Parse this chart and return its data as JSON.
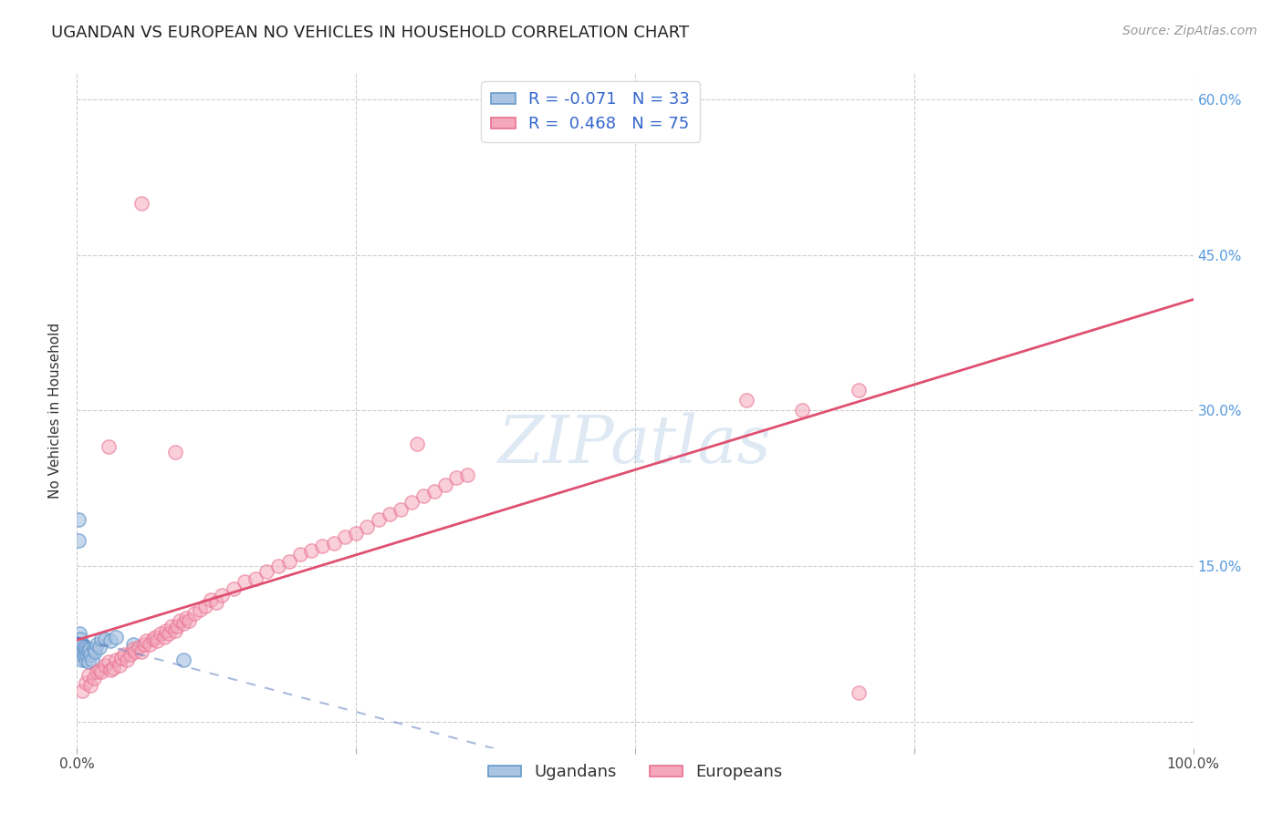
{
  "title": "UGANDAN VS EUROPEAN NO VEHICLES IN HOUSEHOLD CORRELATION CHART",
  "source": "Source: ZipAtlas.com",
  "ylabel": "No Vehicles in Household",
  "xlim": [
    0,
    1.0
  ],
  "ylim": [
    -0.025,
    0.625
  ],
  "ugandan_R": -0.071,
  "ugandan_N": 33,
  "european_R": 0.468,
  "european_N": 75,
  "ugandan_color": "#aac4e2",
  "european_color": "#f5a8bc",
  "ugandan_edge_color": "#6699cc",
  "european_edge_color": "#e87090",
  "ugandan_line_color": "#5577bb",
  "european_line_color": "#e05070",
  "background_color": "#ffffff",
  "grid_color": "#c8c8c8",
  "title_fontsize": 13,
  "axis_label_fontsize": 11,
  "tick_fontsize": 11,
  "legend_fontsize": 13,
  "source_fontsize": 10,
  "ugandan_x": [
    0.001,
    0.001,
    0.002,
    0.002,
    0.002,
    0.003,
    0.003,
    0.004,
    0.004,
    0.005,
    0.005,
    0.005,
    0.006,
    0.006,
    0.007,
    0.008,
    0.008,
    0.009,
    0.01,
    0.01,
    0.011,
    0.012,
    0.014,
    0.015,
    0.016,
    0.018,
    0.02,
    0.022,
    0.025,
    0.03,
    0.035,
    0.05,
    0.095
  ],
  "ugandan_y": [
    0.195,
    0.175,
    0.085,
    0.07,
    0.065,
    0.08,
    0.07,
    0.075,
    0.065,
    0.075,
    0.068,
    0.06,
    0.072,
    0.065,
    0.07,
    0.068,
    0.06,
    0.065,
    0.068,
    0.058,
    0.07,
    0.065,
    0.06,
    0.07,
    0.068,
    0.075,
    0.072,
    0.08,
    0.08,
    0.078,
    0.082,
    0.075,
    0.06
  ],
  "european_x": [
    0.005,
    0.008,
    0.01,
    0.012,
    0.015,
    0.018,
    0.02,
    0.022,
    0.025,
    0.028,
    0.03,
    0.032,
    0.035,
    0.038,
    0.04,
    0.042,
    0.045,
    0.048,
    0.05,
    0.052,
    0.055,
    0.058,
    0.06,
    0.062,
    0.065,
    0.068,
    0.07,
    0.072,
    0.075,
    0.078,
    0.08,
    0.082,
    0.085,
    0.088,
    0.09,
    0.092,
    0.095,
    0.098,
    0.1,
    0.105,
    0.11,
    0.115,
    0.12,
    0.125,
    0.13,
    0.14,
    0.15,
    0.16,
    0.17,
    0.18,
    0.19,
    0.2,
    0.21,
    0.22,
    0.23,
    0.24,
    0.25,
    0.26,
    0.27,
    0.28,
    0.29,
    0.3,
    0.31,
    0.32,
    0.33,
    0.34,
    0.35,
    0.6,
    0.65,
    0.7,
    0.028,
    0.305,
    0.058,
    0.088,
    0.7
  ],
  "european_y": [
    0.03,
    0.038,
    0.045,
    0.035,
    0.042,
    0.048,
    0.05,
    0.048,
    0.055,
    0.058,
    0.05,
    0.052,
    0.06,
    0.055,
    0.062,
    0.065,
    0.06,
    0.065,
    0.07,
    0.068,
    0.072,
    0.068,
    0.075,
    0.078,
    0.075,
    0.08,
    0.082,
    0.078,
    0.085,
    0.082,
    0.088,
    0.085,
    0.092,
    0.088,
    0.092,
    0.098,
    0.095,
    0.1,
    0.098,
    0.105,
    0.108,
    0.112,
    0.118,
    0.115,
    0.122,
    0.128,
    0.135,
    0.138,
    0.145,
    0.15,
    0.155,
    0.162,
    0.165,
    0.17,
    0.172,
    0.178,
    0.182,
    0.188,
    0.195,
    0.2,
    0.205,
    0.212,
    0.218,
    0.222,
    0.228,
    0.235,
    0.238,
    0.31,
    0.3,
    0.32,
    0.265,
    0.268,
    0.5,
    0.26,
    0.028
  ]
}
